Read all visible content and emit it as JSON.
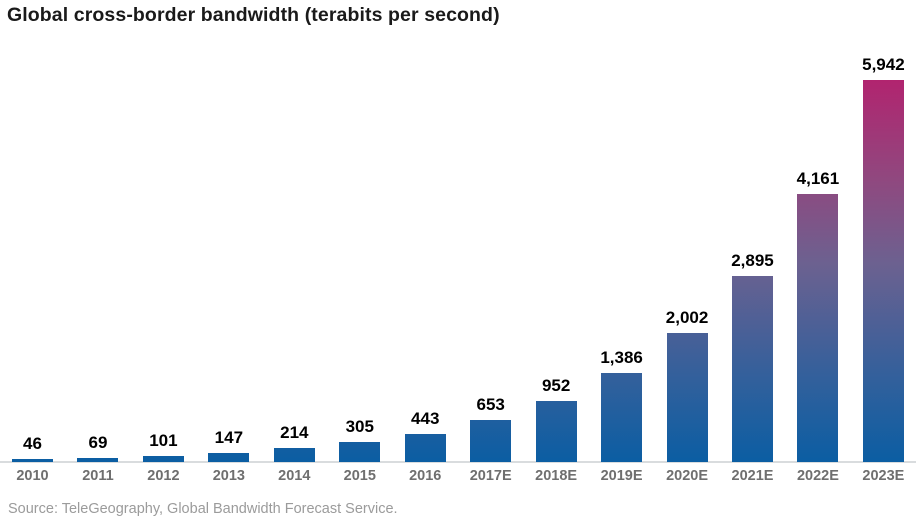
{
  "chart_data": {
    "type": "bar",
    "title": "Global cross-border bandwidth (terabits per second)",
    "categories": [
      "2010",
      "2011",
      "2012",
      "2013",
      "2014",
      "2015",
      "2016",
      "2017E",
      "2018E",
      "2019E",
      "2020E",
      "2021E",
      "2022E",
      "2023E"
    ],
    "values": [
      46,
      69,
      101,
      147,
      214,
      305,
      443,
      653,
      952,
      1386,
      2002,
      2895,
      4161,
      5942
    ],
    "value_labels": [
      "46",
      "69",
      "101",
      "147",
      "214",
      "305",
      "443",
      "653",
      "952",
      "1,386",
      "2,002",
      "2,895",
      "4,161",
      "5,942"
    ],
    "xlabel": "",
    "ylabel": "",
    "ylim": [
      0,
      5942
    ],
    "grid": false,
    "legend": false,
    "source": "Source: TeleGeography, Global Bandwidth Forecast Service.",
    "colors": {
      "gradient_top": "#b1246f",
      "gradient_upper": "#90487f",
      "gradient_mid": "#6c6190",
      "gradient_lower": "#36609b",
      "gradient_bottom": "#0b5ea3",
      "axis_line": "#d9dcde",
      "title_text": "#1a1a1a",
      "value_label_text": "#000000",
      "year_label_text": "#6f6f6f",
      "source_text": "#9b9b9b"
    }
  }
}
